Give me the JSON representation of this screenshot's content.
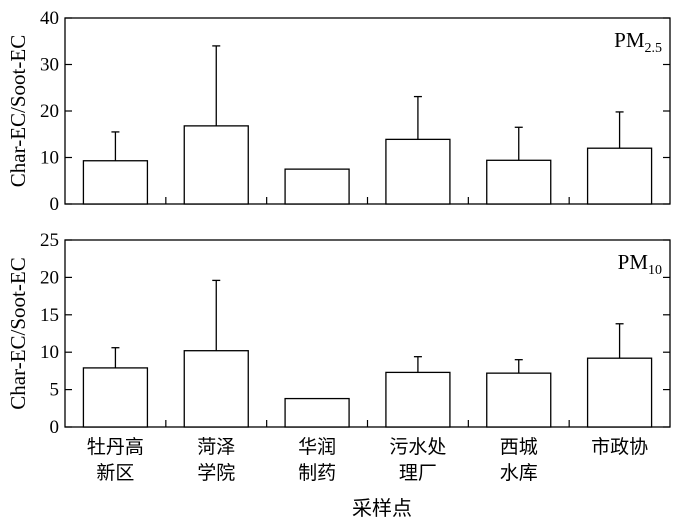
{
  "chart_data": {
    "type": "bar",
    "categories": [
      [
        "牡丹高",
        "新区"
      ],
      [
        "菏泽",
        "学院"
      ],
      [
        "华润",
        "制药"
      ],
      [
        "污水处",
        "理厂"
      ],
      [
        "西城",
        "水库"
      ],
      [
        "市政协"
      ]
    ],
    "xlabel": "采样点",
    "panels": [
      {
        "label_main": "PM",
        "label_sub": "2.5",
        "ylabel": "Char-EC/Soot-EC",
        "ylim": [
          0,
          40
        ],
        "yticks": [
          0,
          10,
          20,
          30,
          40
        ],
        "values": [
          9.3,
          16.8,
          7.5,
          13.9,
          9.4,
          12.0
        ],
        "errors": [
          6.2,
          17.2,
          0,
          9.2,
          7.1,
          7.8
        ]
      },
      {
        "label_main": "PM",
        "label_sub": "10",
        "ylabel": "Char-EC/Soot-EC",
        "ylim": [
          0,
          25
        ],
        "yticks": [
          0,
          5,
          10,
          15,
          20,
          25
        ],
        "values": [
          7.9,
          10.2,
          3.8,
          7.3,
          7.2,
          9.2
        ],
        "errors": [
          2.7,
          9.4,
          0,
          2.1,
          1.8,
          4.6
        ]
      }
    ]
  }
}
